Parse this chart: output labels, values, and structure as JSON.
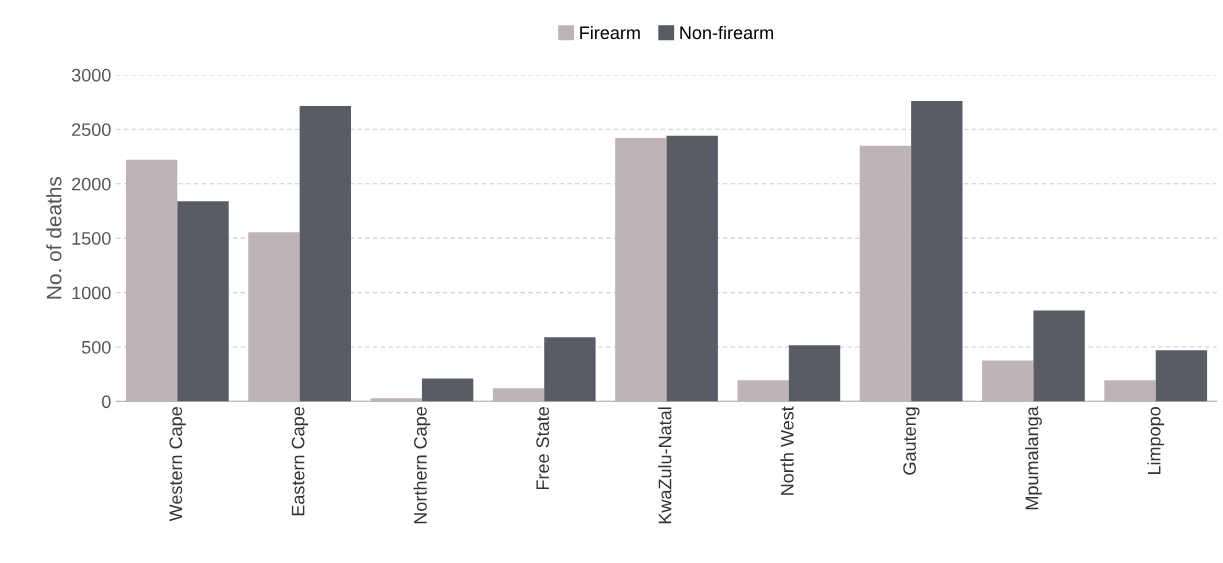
{
  "chart_data": {
    "type": "bar",
    "ylabel": "No. of deaths",
    "categories": [
      "Western Cape",
      "Eastern Cape",
      "Northern Cape",
      "Free State",
      "KwaZulu-Natal",
      "North West",
      "Gauteng",
      "Mpumalanga",
      "Limpopo"
    ],
    "series": [
      {
        "name": "Firearm",
        "color": "#bfb4b5",
        "values": [
          2220,
          1555,
          30,
          120,
          2420,
          195,
          2350,
          375,
          195
        ]
      },
      {
        "name": "Non-firearm",
        "color": "#595c64",
        "values": [
          1840,
          2715,
          210,
          590,
          2440,
          515,
          2760,
          835,
          470
        ]
      }
    ],
    "ylim": [
      0,
      3000
    ],
    "yticks": [
      0,
      500,
      1000,
      1500,
      2000,
      2500,
      3000
    ],
    "grid": "y",
    "legend": "top"
  }
}
